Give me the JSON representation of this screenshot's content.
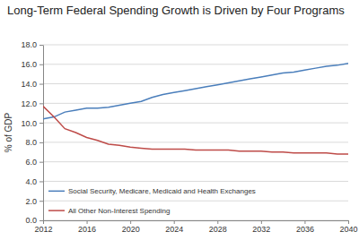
{
  "chart_data": {
    "type": "line",
    "title": "Long-Term Federal Spending Growth is Driven by Four Programs",
    "y_label": "% of GDP",
    "x": [
      2012,
      2013,
      2014,
      2015,
      2016,
      2017,
      2018,
      2019,
      2020,
      2021,
      2022,
      2023,
      2024,
      2025,
      2026,
      2027,
      2028,
      2029,
      2030,
      2031,
      2032,
      2033,
      2034,
      2035,
      2036,
      2037,
      2038,
      2039,
      2040
    ],
    "series": [
      {
        "name": "Social Security, Medicare, Medicaid and Health Exchanges",
        "color": "#4a7ebb",
        "values": [
          10.4,
          10.6,
          11.1,
          11.3,
          11.5,
          11.5,
          11.6,
          11.8,
          12.0,
          12.2,
          12.6,
          12.9,
          13.1,
          13.3,
          13.5,
          13.7,
          13.9,
          14.1,
          14.3,
          14.5,
          14.7,
          14.9,
          15.1,
          15.2,
          15.4,
          15.6,
          15.8,
          15.9,
          16.1
        ]
      },
      {
        "name": "All Other Non-Interest Spending",
        "color": "#be4b48",
        "values": [
          11.7,
          10.6,
          9.4,
          9.0,
          8.5,
          8.2,
          7.8,
          7.7,
          7.5,
          7.4,
          7.3,
          7.3,
          7.3,
          7.3,
          7.2,
          7.2,
          7.2,
          7.2,
          7.1,
          7.1,
          7.1,
          7.0,
          7.0,
          6.9,
          6.9,
          6.9,
          6.9,
          6.8,
          6.8
        ]
      }
    ],
    "xlim": [
      2012,
      2040
    ],
    "xticks": [
      2012,
      2016,
      2020,
      2024,
      2028,
      2032,
      2036,
      2040
    ],
    "ylim": [
      0,
      18
    ],
    "yticks": [
      {
        "value": 0,
        "label": "0.0"
      },
      {
        "value": 2,
        "label": "2.0"
      },
      {
        "value": 4,
        "label": "4.0"
      },
      {
        "value": 6,
        "label": "6.0"
      },
      {
        "value": 8,
        "label": "8.0"
      },
      {
        "value": 10,
        "label": "10.0"
      },
      {
        "value": 12,
        "label": "12.0"
      },
      {
        "value": 14,
        "label": "14.0"
      },
      {
        "value": 16,
        "label": "16.0"
      },
      {
        "value": 18,
        "label": "18.0"
      }
    ],
    "grid": true,
    "legend": "lower left"
  }
}
